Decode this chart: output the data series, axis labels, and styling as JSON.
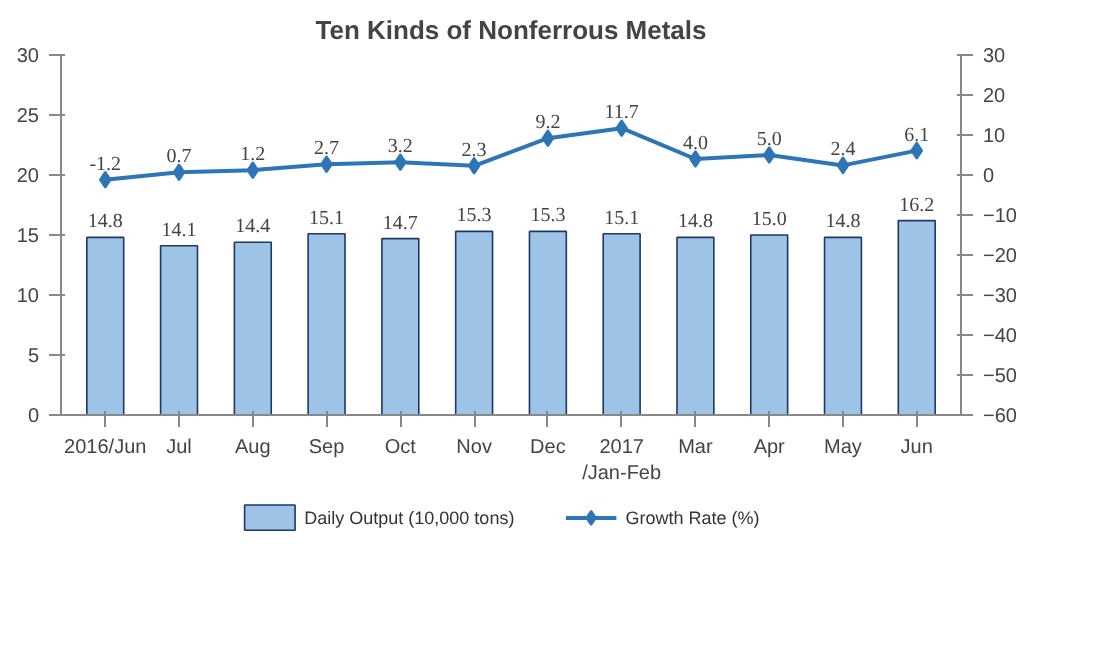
{
  "chart_data": {
    "type": "bar",
    "title": "Ten Kinds of Nonferrous Metals",
    "categories": [
      "2016/Jun",
      "Jul",
      "Aug",
      "Sep",
      "Oct",
      "Nov",
      "Dec",
      "2017\n/Jan-Feb",
      "Mar",
      "Apr",
      "May",
      "Jun"
    ],
    "series": [
      {
        "name": "Daily Output (10,000 tons)",
        "color": "#9dc3e6",
        "values": [
          14.8,
          14.1,
          14.4,
          15.1,
          14.7,
          15.3,
          15.3,
          15.1,
          14.8,
          15.0,
          14.8,
          16.2
        ],
        "value_labels": [
          "14.8",
          "14.1",
          "14.4",
          "15.1",
          "14.7",
          "15.3",
          "15.3",
          "15.1",
          "14.8",
          "15.0",
          "14.8",
          "16.2"
        ]
      },
      {
        "name": "Growth Rate (%)",
        "type": "line",
        "axis": "y2",
        "color": "#2e75b6",
        "marker": "diamond",
        "values": [
          -1.2,
          0.7,
          1.2,
          2.7,
          3.2,
          2.3,
          9.2,
          11.7,
          4.0,
          5.0,
          2.4,
          6.1
        ],
        "value_labels": [
          "-1.2",
          "0.7",
          "1.2",
          "2.7",
          "3.2",
          "2.3",
          "9.2",
          "11.7",
          "4.0",
          "5.0",
          "2.4",
          "6.1"
        ]
      }
    ],
    "ylim": [
      0,
      30
    ],
    "yticks": [
      0,
      5,
      10,
      15,
      20,
      25,
      30
    ],
    "y2lim": [
      -60,
      30
    ],
    "y2ticks": [
      -60,
      -50,
      -40,
      -30,
      -20,
      -10,
      0,
      10,
      20,
      30
    ],
    "legend": "bottom"
  }
}
